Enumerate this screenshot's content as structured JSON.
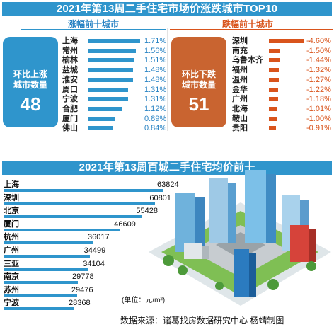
{
  "title_top": "2021年第13周二手住宅市场价涨跌城市TOP10",
  "rise": {
    "subtitle": "涨幅前十城市",
    "box_label_line1": "环比上涨",
    "box_label_line2": "城市数量",
    "count": "48"
  },
  "fall": {
    "subtitle": "跌幅前十城市",
    "box_label_line1": "环比下跌",
    "box_label_line2": "城市数量",
    "count": "51"
  },
  "title_bottom": "2021年第13周百城二手住宅均价前十",
  "unit": "(单位：元/m²)",
  "source": "数据来源：诸葛找房数据研究中心   杨靖制图",
  "colors": {
    "blue": "#2f95cc",
    "orange": "#d9541c",
    "box_orange": "#c96430"
  },
  "chart_data": [
    {
      "type": "bar",
      "title": "涨幅前十城市",
      "categories": [
        "上海",
        "常州",
        "榆林",
        "盐城",
        "淮安",
        "周口",
        "宁波",
        "合肥",
        "厦门",
        "佛山"
      ],
      "values": [
        1.71,
        1.56,
        1.51,
        1.48,
        1.48,
        1.31,
        1.31,
        1.12,
        0.89,
        0.84
      ],
      "labels": [
        "1.71%",
        "1.56%",
        "1.51%",
        "1.48%",
        "1.48%",
        "1.31%",
        "1.31%",
        "1.12%",
        "0.89%",
        "0.84%"
      ],
      "orientation": "horizontal"
    },
    {
      "type": "bar",
      "title": "跌幅前十城市",
      "categories": [
        "深圳",
        "南充",
        "乌鲁木齐",
        "福州",
        "温州",
        "金华",
        "广州",
        "北海",
        "鞍山",
        "贵阳"
      ],
      "values": [
        -4.6,
        -1.5,
        -1.44,
        -1.32,
        -1.27,
        -1.22,
        -1.18,
        -1.01,
        -1.0,
        -0.91
      ],
      "labels": [
        "-4.60%",
        "-1.50%",
        "-1.44%",
        "-1.32%",
        "-1.27%",
        "-1.22%",
        "-1.18%",
        "-1.01%",
        "-1.00%",
        "-0.91%"
      ],
      "orientation": "horizontal"
    },
    {
      "type": "bar",
      "title": "2021年第13周百城二手住宅均价前十",
      "categories": [
        "上海",
        "深圳",
        "北京",
        "厦门",
        "杭州",
        "广州",
        "三亚",
        "南京",
        "苏州",
        "宁波"
      ],
      "values": [
        63824,
        60801,
        55428,
        46609,
        36017,
        34499,
        34104,
        29778,
        29476,
        28368
      ],
      "labels": [
        "63824",
        "60801",
        "55428",
        "46609",
        "36017",
        "34499",
        "34104",
        "29778",
        "29476",
        "28368"
      ],
      "orientation": "horizontal"
    }
  ]
}
